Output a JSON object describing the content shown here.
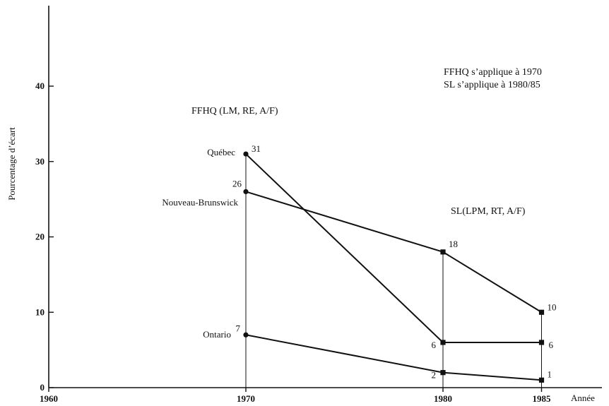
{
  "chart_data": {
    "type": "line",
    "title": "",
    "xlabel": "Année",
    "ylabel": "Pourcentage d’écart",
    "x_ticks": [
      "1960",
      "1970",
      "1980",
      "1985"
    ],
    "y_ticks": [
      "0",
      "10",
      "20",
      "30",
      "40"
    ],
    "xlim": [
      1960,
      1987
    ],
    "ylim": [
      0,
      45
    ],
    "grid": false,
    "series": [
      {
        "name": "Québec",
        "x": [
          1970,
          1980,
          1985
        ],
        "values": [
          31,
          6,
          6
        ],
        "labels": [
          "31",
          "6",
          "6"
        ]
      },
      {
        "name": "Nouveau-Brunswick",
        "x": [
          1970,
          1980,
          1985
        ],
        "values": [
          26,
          18,
          10
        ],
        "labels": [
          "26",
          "18",
          "10"
        ]
      },
      {
        "name": "Ontario",
        "x": [
          1970,
          1980,
          1985
        ],
        "values": [
          7,
          2,
          1
        ],
        "labels": [
          "7",
          "2",
          "1"
        ]
      }
    ],
    "annotations": {
      "ffhq_group": "FFHQ (LM, RE, A/F)",
      "sl_group": "SL(LPM, RT, A/F)",
      "note_line1": "FFHQ s’applique à 1970",
      "note_line2": "SL s’applique à 1980/85"
    }
  }
}
